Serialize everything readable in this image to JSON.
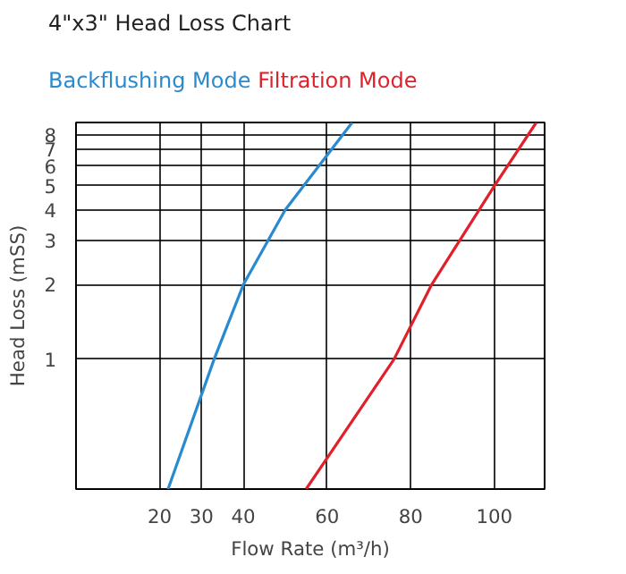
{
  "chart_data": {
    "type": "line",
    "title": "4\"x3\" Head Loss Chart",
    "xlabel": "Flow Rate (m³/h)",
    "ylabel": "Head Loss (mSS)",
    "log": "y",
    "grid": true,
    "marker": "none",
    "line_style": "solid",
    "xlim": [
      0,
      112
    ],
    "ylim": [
      0.3,
      9
    ],
    "xticks": [
      20,
      30,
      40,
      60,
      80,
      100
    ],
    "yticks": [
      1,
      2,
      3,
      4,
      5,
      6,
      7,
      8
    ],
    "series": [
      {
        "name": "Backflushing Mode",
        "color": "#2a8ad0",
        "x": [
          22,
          33,
          40,
          50,
          66
        ],
        "values": [
          0.3,
          1,
          2,
          4,
          9
        ]
      },
      {
        "name": "Filtration Mode",
        "color": "#e0202a",
        "x": [
          55,
          76,
          85,
          100,
          110
        ],
        "values": [
          0.3,
          1,
          2,
          5,
          9
        ]
      }
    ]
  }
}
